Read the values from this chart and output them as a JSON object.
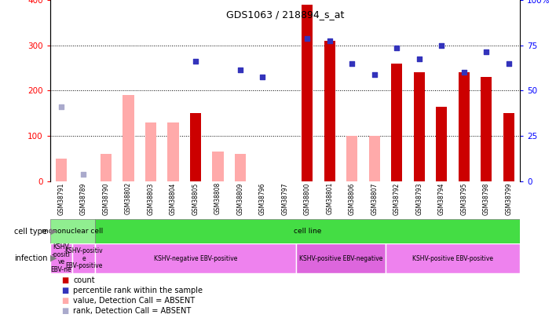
{
  "title": "GDS1063 / 218894_s_at",
  "samples": [
    "GSM38791",
    "GSM38789",
    "GSM38790",
    "GSM38802",
    "GSM38803",
    "GSM38804",
    "GSM38805",
    "GSM38808",
    "GSM38809",
    "GSM38796",
    "GSM38797",
    "GSM38800",
    "GSM38801",
    "GSM38806",
    "GSM38807",
    "GSM38792",
    "GSM38793",
    "GSM38794",
    "GSM38795",
    "GSM38798",
    "GSM38799"
  ],
  "count_present": [
    null,
    null,
    null,
    null,
    null,
    null,
    150,
    null,
    null,
    null,
    null,
    390,
    310,
    null,
    null,
    260,
    240,
    165,
    240,
    230,
    150
  ],
  "count_absent": [
    50,
    null,
    60,
    190,
    130,
    130,
    null,
    65,
    60,
    null,
    null,
    null,
    null,
    100,
    100,
    null,
    null,
    null,
    null,
    null,
    null
  ],
  "rank_present": [
    null,
    null,
    null,
    null,
    null,
    null,
    265,
    null,
    245,
    230,
    null,
    315,
    310,
    260,
    235,
    295,
    270,
    300,
    240,
    285,
    260
  ],
  "rank_absent": [
    165,
    15,
    null,
    null,
    null,
    null,
    null,
    null,
    null,
    null,
    null,
    null,
    null,
    null,
    null,
    null,
    null,
    null,
    null,
    null,
    null
  ],
  "cell_type_groups": [
    {
      "label": "mononuclear cell",
      "start": 0,
      "end": 2,
      "color": "#90ee90"
    },
    {
      "label": "cell line",
      "start": 2,
      "end": 21,
      "color": "#44dd44"
    }
  ],
  "infection_groups": [
    {
      "label": "KSHV\n-positi\nve\nEBV-ne",
      "start": 0,
      "end": 1,
      "color": "#ee82ee"
    },
    {
      "label": "KSHV-positiv\ne\nEBV-positive",
      "start": 1,
      "end": 2,
      "color": "#ee82ee"
    },
    {
      "label": "KSHV-negative EBV-positive",
      "start": 2,
      "end": 11,
      "color": "#ee82ee"
    },
    {
      "label": "KSHV-positive EBV-negative",
      "start": 11,
      "end": 15,
      "color": "#dd66dd"
    },
    {
      "label": "KSHV-positive EBV-positive",
      "start": 15,
      "end": 21,
      "color": "#ee82ee"
    }
  ],
  "ylim_left": [
    0,
    400
  ],
  "ylim_right": [
    0,
    100
  ],
  "yticks_left": [
    0,
    100,
    200,
    300,
    400
  ],
  "yticks_right": [
    0,
    25,
    50,
    75,
    100
  ],
  "color_count_present": "#cc0000",
  "color_count_absent": "#ffaaaa",
  "color_rank_present": "#3333bb",
  "color_rank_absent": "#aaaacc",
  "legend_items": [
    {
      "label": "count",
      "color": "#cc0000"
    },
    {
      "label": "percentile rank within the sample",
      "color": "#3333bb"
    },
    {
      "label": "value, Detection Call = ABSENT",
      "color": "#ffaaaa"
    },
    {
      "label": "rank, Detection Call = ABSENT",
      "color": "#aaaacc"
    }
  ]
}
